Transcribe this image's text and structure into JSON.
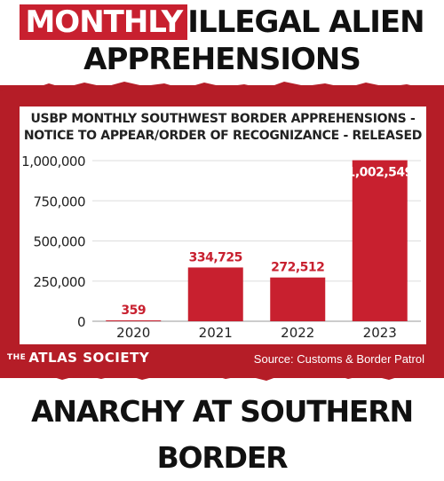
{
  "headline": {
    "highlight": "MONTHLY",
    "rest_line1": "ILLEGAL ALIEN",
    "line2": "APPREHENSIONS"
  },
  "chart_title_line1": "USBP MONTHLY SOUTHWEST BORDER APPREHENSIONS -",
  "chart_title_line2": "NOTICE TO APPEAR/ORDER OF RECOGNIZANCE - RELEASED",
  "chart_data": {
    "type": "bar",
    "title": "USBP MONTHLY SOUTHWEST BORDER APPREHENSIONS - NOTICE TO APPEAR/ORDER OF RECOGNIZANCE - RELEASED",
    "categories": [
      "2020",
      "2021",
      "2022",
      "2023"
    ],
    "values": [
      359,
      334725,
      272512,
      1002549
    ],
    "data_labels": [
      "359",
      "334,725",
      "272,512",
      "1,002,549"
    ],
    "ylim": [
      0,
      1000000
    ],
    "yticks": [
      0,
      250000,
      500000,
      750000,
      1000000
    ],
    "ytick_labels": [
      "0",
      "250,000",
      "500,000",
      "750,000",
      "1,000,000"
    ],
    "grid": true,
    "bar_color": "#c8202f",
    "xlabel": "",
    "ylabel": ""
  },
  "footer": {
    "brand_prefix": "THE",
    "brand": "ATLAS SOCIETY",
    "source": "Source: Customs & Border Patrol"
  },
  "bottom_banner": "ANARCHY AT SOUTHERN BORDER",
  "colors": {
    "accent_red": "#c8202f",
    "band_red": "#b51d27"
  }
}
